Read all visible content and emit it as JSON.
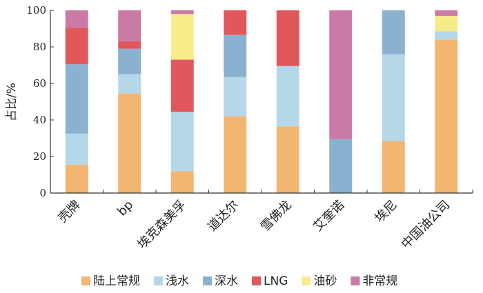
{
  "chart_data": {
    "type": "bar",
    "stacked": true,
    "categories": [
      "壳牌",
      "bp",
      "埃克森美孚",
      "道达尔",
      "雪佛龙",
      "艾奎诺",
      "埃尼",
      "中国油公司"
    ],
    "series": [
      {
        "name": "陆上常规",
        "color": "#F2B572",
        "values": [
          15.5,
          54.5,
          12,
          42,
          36.5,
          0,
          28.5,
          84
        ]
      },
      {
        "name": "浅水",
        "color": "#B5D8E9",
        "values": [
          17,
          10.5,
          32.5,
          21.5,
          33,
          0,
          47.5,
          4.5
        ]
      },
      {
        "name": "深水",
        "color": "#8BB1D1",
        "values": [
          38,
          14,
          0,
          23,
          0,
          29.5,
          24,
          0
        ]
      },
      {
        "name": "LNG",
        "color": "#E0585B",
        "values": [
          20,
          4,
          28.5,
          13.5,
          30.5,
          0,
          0,
          0
        ]
      },
      {
        "name": "油砂",
        "color": "#F8EB8A",
        "values": [
          0,
          0,
          25,
          0,
          0,
          0,
          0,
          8.5
        ]
      },
      {
        "name": "非常规",
        "color": "#C97BA6",
        "values": [
          9.5,
          17,
          2,
          0,
          0,
          70.5,
          0,
          3
        ]
      }
    ],
    "ylabel": "占比/%",
    "ylim": [
      0,
      100
    ],
    "yticks": [
      0,
      20,
      40,
      60,
      80,
      100
    ],
    "legend_position": "bottom",
    "grid": false
  }
}
